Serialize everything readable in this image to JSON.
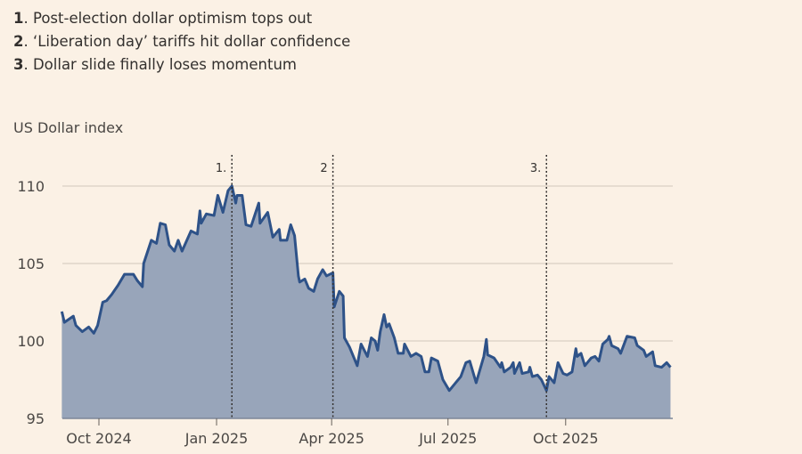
{
  "annotations": [
    {
      "num": "1",
      "text": ". Post-election dollar optimism tops out"
    },
    {
      "num": "2",
      "text": ". ‘Liberation day’ tariffs hit dollar confidence"
    },
    {
      "num": "3",
      "text": ". Dollar slide finally loses momentum"
    }
  ],
  "chart_data": {
    "type": "area",
    "title": "",
    "ylabel": "US Dollar index",
    "xlabel": "",
    "ylim": [
      95,
      110.5
    ],
    "yticks": [
      95,
      100,
      105,
      110
    ],
    "xticks": [
      {
        "date": "2024-10-01",
        "label": "Oct 2024"
      },
      {
        "date": "2025-01-01",
        "label": "Jan 2025"
      },
      {
        "date": "2025-04-01",
        "label": "Apr 2025"
      },
      {
        "date": "2025-07-01",
        "label": "Jul 2025"
      },
      {
        "date": "2025-10-01",
        "label": "Oct 2025"
      }
    ],
    "grid": "horizontal",
    "markers": [
      {
        "date": "2025-01-13",
        "label": "1."
      },
      {
        "date": "2025-04-02",
        "label": "2"
      },
      {
        "date": "2025-09-16",
        "label": "3."
      }
    ],
    "colors": {
      "line": "#2E5288",
      "fill": "#98A5BA",
      "grid": "#D9CFC4"
    },
    "x": [
      "2024-09-02",
      "2024-09-04",
      "2024-09-11",
      "2024-09-13",
      "2024-09-18",
      "2024-09-23",
      "2024-09-27",
      "2024-09-30",
      "2024-10-04",
      "2024-10-07",
      "2024-10-11",
      "2024-10-16",
      "2024-10-21",
      "2024-10-28",
      "2024-10-31",
      "2024-11-04",
      "2024-11-05",
      "2024-11-11",
      "2024-11-15",
      "2024-11-18",
      "2024-11-22",
      "2024-11-25",
      "2024-11-29",
      "2024-12-02",
      "2024-12-05",
      "2024-12-12",
      "2024-12-17",
      "2024-12-19",
      "2024-12-20",
      "2024-12-24",
      "2024-12-30",
      "2025-01-02",
      "2025-01-06",
      "2025-01-10",
      "2025-01-13",
      "2025-01-16",
      "2025-01-17",
      "2025-01-21",
      "2025-01-24",
      "2025-01-28",
      "2025-02-03",
      "2025-02-04",
      "2025-02-10",
      "2025-02-14",
      "2025-02-19",
      "2025-02-20",
      "2025-02-25",
      "2025-02-28",
      "2025-03-03",
      "2025-03-06",
      "2025-03-07",
      "2025-03-11",
      "2025-03-14",
      "2025-03-18",
      "2025-03-21",
      "2025-03-25",
      "2025-03-28",
      "2025-04-02",
      "2025-04-03",
      "2025-04-07",
      "2025-04-10",
      "2025-04-11",
      "2025-04-15",
      "2025-04-21",
      "2025-04-24",
      "2025-04-29",
      "2025-05-02",
      "2025-05-05",
      "2025-05-07",
      "2025-05-09",
      "2025-05-12",
      "2025-05-14",
      "2025-05-16",
      "2025-05-20",
      "2025-05-23",
      "2025-05-27",
      "2025-05-28",
      "2025-06-02",
      "2025-06-06",
      "2025-06-10",
      "2025-06-13",
      "2025-06-16",
      "2025-06-18",
      "2025-06-23",
      "2025-06-27",
      "2025-07-02",
      "2025-07-07",
      "2025-07-11",
      "2025-07-15",
      "2025-07-18",
      "2025-07-23",
      "2025-07-29",
      "2025-07-31",
      "2025-08-01",
      "2025-08-06",
      "2025-08-11",
      "2025-08-12",
      "2025-08-14",
      "2025-08-19",
      "2025-08-21",
      "2025-08-22",
      "2025-08-26",
      "2025-08-28",
      "2025-09-02",
      "2025-09-03",
      "2025-09-05",
      "2025-09-09",
      "2025-09-12",
      "2025-09-16",
      "2025-09-18",
      "2025-09-22",
      "2025-09-25",
      "2025-09-29",
      "2025-10-02",
      "2025-10-06",
      "2025-10-09",
      "2025-10-10",
      "2025-10-13",
      "2025-10-16",
      "2025-10-21",
      "2025-10-24",
      "2025-10-27",
      "2025-10-30",
      "2025-11-03",
      "2025-11-04",
      "2025-11-06",
      "2025-11-11",
      "2025-11-13",
      "2025-11-18",
      "2025-11-24",
      "2025-11-26",
      "2025-12-01",
      "2025-12-03",
      "2025-12-08",
      "2025-12-10",
      "2025-12-15",
      "2025-12-19",
      "2025-12-22"
    ],
    "values": [
      101.9,
      101.2,
      101.6,
      101.0,
      100.6,
      100.9,
      100.5,
      101.0,
      102.5,
      102.6,
      103.0,
      103.6,
      104.3,
      104.3,
      103.9,
      103.5,
      105.0,
      106.5,
      106.3,
      107.6,
      107.5,
      106.2,
      105.8,
      106.5,
      105.8,
      107.1,
      106.9,
      108.4,
      107.6,
      108.2,
      108.1,
      109.4,
      108.3,
      109.7,
      110.0,
      108.9,
      109.4,
      109.4,
      107.5,
      107.4,
      108.9,
      107.6,
      108.3,
      106.7,
      107.2,
      106.5,
      106.5,
      107.5,
      106.8,
      104.2,
      103.8,
      104.0,
      103.4,
      103.2,
      104.0,
      104.6,
      104.2,
      104.4,
      102.2,
      103.2,
      102.9,
      100.2,
      99.6,
      98.4,
      99.8,
      99.0,
      100.2,
      100.0,
      99.4,
      100.6,
      101.7,
      100.9,
      101.1,
      100.2,
      99.2,
      99.2,
      99.8,
      99.0,
      99.2,
      99.0,
      98.0,
      98.0,
      98.9,
      98.7,
      97.5,
      96.8,
      97.3,
      97.7,
      98.6,
      98.7,
      97.3,
      99.0,
      100.1,
      99.1,
      98.9,
      98.3,
      98.6,
      98.0,
      98.3,
      98.6,
      97.9,
      98.6,
      97.9,
      98.0,
      98.3,
      97.7,
      97.8,
      97.5,
      96.8,
      97.7,
      97.3,
      98.6,
      97.9,
      97.8,
      98.0,
      99.5,
      99.0,
      99.2,
      98.4,
      98.9,
      99.0,
      98.7,
      99.8,
      100.1,
      100.3,
      99.7,
      99.5,
      99.2,
      100.3,
      100.2,
      99.7,
      99.4,
      99.0,
      99.3,
      98.4,
      98.3,
      98.6,
      98.3
    ]
  }
}
